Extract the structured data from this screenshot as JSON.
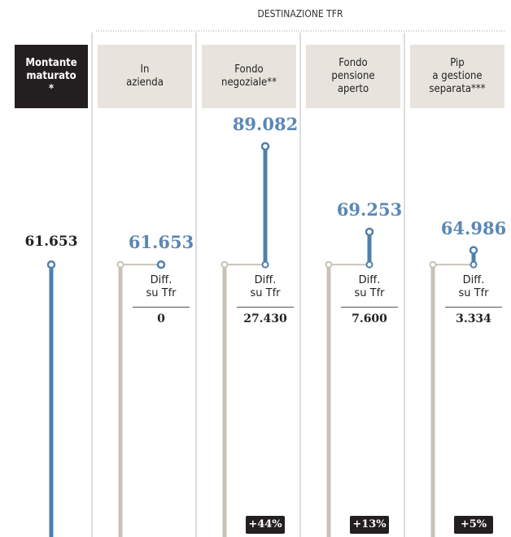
{
  "chart_data": {
    "type": "lollipop",
    "title": "DESTINAZIONE TFR",
    "base": {
      "name": "Montante\nmaturato\n*",
      "value": 61653,
      "value_label": "61.653"
    },
    "categories": [
      "In\nazienda",
      "Fondo\nnegoziale**",
      "Fondo\npensione\naperto",
      "Pip\na gestione\nseparata***"
    ],
    "values": [
      61653,
      89082,
      69253,
      64986
    ],
    "value_labels": [
      "61.653",
      "89.082",
      "69.253",
      "64.986"
    ],
    "diff_label": "Diff.\nsu Tfr",
    "diffs": [
      0,
      27430,
      7600,
      3334
    ],
    "diff_labels": [
      "0",
      "27.430",
      "7.600",
      "3.334"
    ],
    "pct": [
      null,
      44,
      13,
      5
    ],
    "pct_labels": [
      null,
      "+44%",
      "+13%",
      "+5%"
    ],
    "colors": {
      "value": "#4f7fae",
      "base": "#c9c2b6"
    }
  }
}
